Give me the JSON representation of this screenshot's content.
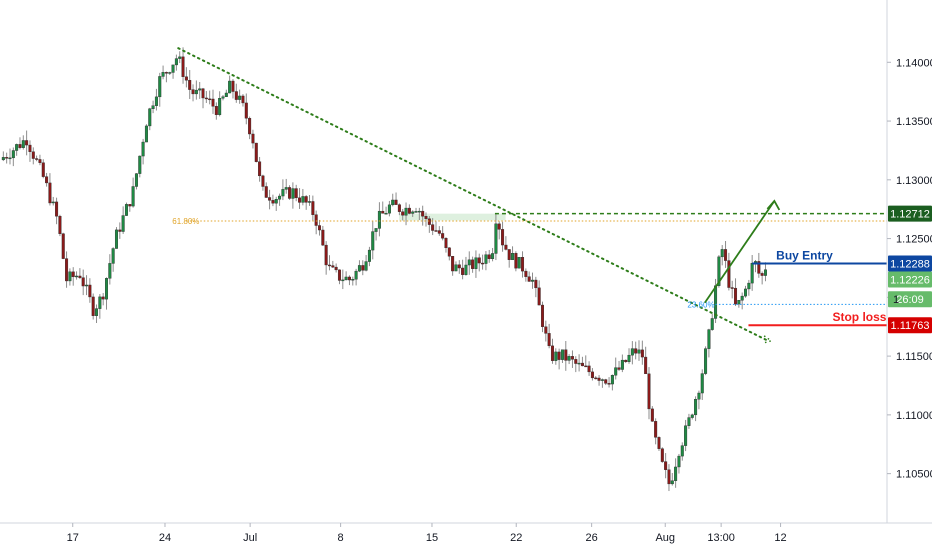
{
  "chart_data": {
    "type": "candlestick",
    "instrument": "EURUSD",
    "y_axis_ticks": [
      "1.14000",
      "1.13500",
      "1.13000",
      "1.12500",
      "1.12000",
      "1.11500",
      "1.11000",
      "1.10500"
    ],
    "y_axis_tick_values": [
      1.14,
      1.135,
      1.13,
      1.125,
      1.12,
      1.115,
      1.11,
      1.105
    ],
    "ylim": [
      1.1008,
      1.1453
    ],
    "x_axis_ticks": [
      "17",
      "24",
      "Jul",
      "8",
      "15",
      "22",
      "26",
      "Aug",
      "13:00",
      "12"
    ],
    "x_axis_tick_fracs": [
      0.082,
      0.186,
      0.282,
      0.384,
      0.487,
      0.582,
      0.667,
      0.75,
      0.813,
      0.88
    ],
    "price_path": [
      [
        0.0,
        1.1317
      ],
      [
        0.03,
        1.1335
      ],
      [
        0.05,
        1.13
      ],
      [
        0.065,
        1.1265
      ],
      [
        0.075,
        1.1215
      ],
      [
        0.09,
        1.122
      ],
      [
        0.105,
        1.119
      ],
      [
        0.115,
        1.12
      ],
      [
        0.13,
        1.125
      ],
      [
        0.15,
        1.129
      ],
      [
        0.165,
        1.135
      ],
      [
        0.18,
        1.1385
      ],
      [
        0.2,
        1.1405
      ],
      [
        0.215,
        1.1375
      ],
      [
        0.23,
        1.137
      ],
      [
        0.245,
        1.136
      ],
      [
        0.26,
        1.138
      ],
      [
        0.275,
        1.136
      ],
      [
        0.285,
        1.1335
      ],
      [
        0.295,
        1.129
      ],
      [
        0.31,
        1.1285
      ],
      [
        0.33,
        1.129
      ],
      [
        0.345,
        1.128
      ],
      [
        0.355,
        1.127
      ],
      [
        0.37,
        1.1225
      ],
      [
        0.38,
        1.1218
      ],
      [
        0.395,
        1.1215
      ],
      [
        0.41,
        1.123
      ],
      [
        0.425,
        1.1265
      ],
      [
        0.44,
        1.1278
      ],
      [
        0.455,
        1.1275
      ],
      [
        0.47,
        1.1278
      ],
      [
        0.48,
        1.1265
      ],
      [
        0.495,
        1.1255
      ],
      [
        0.51,
        1.1225
      ],
      [
        0.525,
        1.1225
      ],
      [
        0.54,
        1.123
      ],
      [
        0.555,
        1.124
      ],
      [
        0.56,
        1.1275
      ],
      [
        0.565,
        1.125
      ],
      [
        0.575,
        1.1235
      ],
      [
        0.59,
        1.1225
      ],
      [
        0.6,
        1.1215
      ],
      [
        0.61,
        1.1185
      ],
      [
        0.62,
        1.115
      ],
      [
        0.635,
        1.115
      ],
      [
        0.645,
        1.1145
      ],
      [
        0.655,
        1.114
      ],
      [
        0.67,
        1.1135
      ],
      [
        0.685,
        1.113
      ],
      [
        0.7,
        1.114
      ],
      [
        0.715,
        1.1155
      ],
      [
        0.725,
        1.115
      ],
      [
        0.735,
        1.109
      ],
      [
        0.745,
        1.106
      ],
      [
        0.755,
        1.104
      ],
      [
        0.765,
        1.107
      ],
      [
        0.775,
        1.109
      ],
      [
        0.79,
        1.113
      ],
      [
        0.8,
        1.117
      ],
      [
        0.81,
        1.1228
      ],
      [
        0.815,
        1.1243
      ],
      [
        0.82,
        1.1218
      ],
      [
        0.83,
        1.119
      ],
      [
        0.84,
        1.1205
      ],
      [
        0.85,
        1.1232
      ],
      [
        0.858,
        1.1215
      ],
      [
        0.863,
        1.1226
      ]
    ],
    "trendline": {
      "from": [
        0.201,
        1.1412
      ],
      "to": [
        0.866,
        1.1163
      ],
      "color": "#2e7d1a"
    },
    "resistance_zone": {
      "from_frac": 0.45,
      "to_frac": 0.57,
      "low": 1.12655,
      "high": 1.12712
    },
    "resistance_line": {
      "value": 1.12712,
      "from_frac": 0.558,
      "color": "#2e7d1a"
    },
    "fib_618": {
      "label": "61.80%",
      "value": 1.1265,
      "from_frac": 0.21,
      "color": "#e0a326"
    },
    "fib_236": {
      "label": "23.60%",
      "value": 1.1194,
      "from_frac": 0.775,
      "color": "#2196f3"
    },
    "buy_entry": {
      "label": "Buy Entry",
      "value": 1.12288,
      "from_frac": 0.848,
      "color": "#0d47a1"
    },
    "stop_loss": {
      "label": "Stop loss",
      "value": 1.11763,
      "from_frac": 0.81,
      "color": "#f21e1e"
    },
    "target_arrow": {
      "from": [
        0.86,
        1.1226
      ],
      "to": [
        0.873,
        1.1282
      ],
      "color": "#2e7d1a"
    },
    "price_tags": [
      {
        "text": "1.12712",
        "value": 1.12712,
        "bg": "#1b5e20",
        "fg": "#ffffff"
      },
      {
        "text": "1.12288",
        "value": 1.12288,
        "bg": "#0d47a1",
        "fg": "#ffffff"
      },
      {
        "text": "1.12226",
        "value": 1.12226,
        "bg": "#66bb6a",
        "fg": "#ffffff"
      },
      {
        "text": "26:09",
        "value": 1.11984,
        "bg": "#66bb6a",
        "fg": "#ffffff"
      },
      {
        "text": "1.11763",
        "value": 1.11763,
        "bg": "#d50000",
        "fg": "#ffffff"
      }
    ],
    "partial_tick_label": "1"
  }
}
